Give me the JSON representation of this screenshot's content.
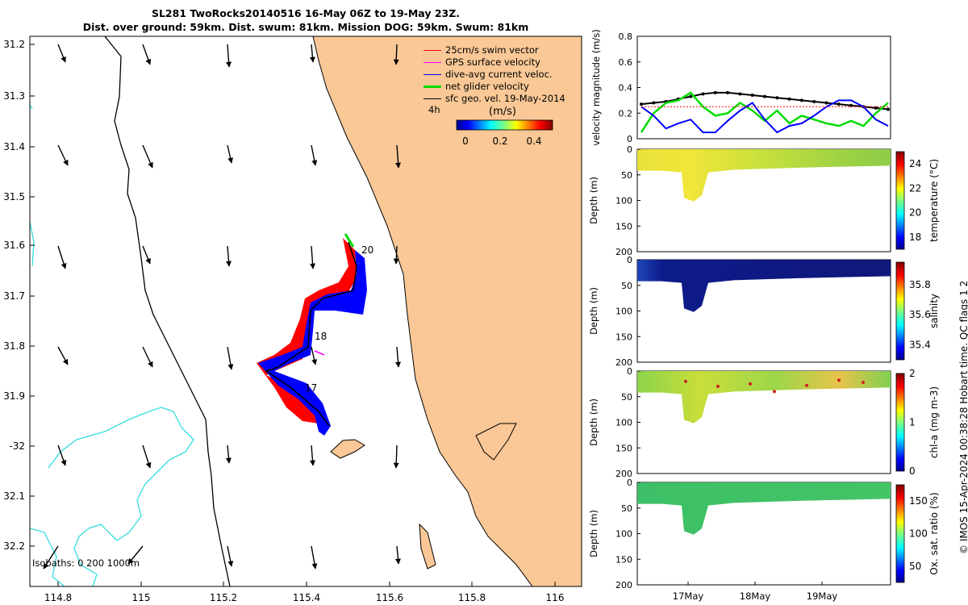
{
  "title_line1": "SL281 TwoRocks20140516 16-May 06Z to 19-May 23Z.",
  "title_line2": "Dist. over ground: 59km. Dist. swum: 81km. Mission DOG: 59km. Swum: 81km",
  "map": {
    "lon_ticks": [
      "114.8",
      "115",
      "115.2",
      "115.4",
      "115.6",
      "115.8",
      "116"
    ],
    "lat_ticks": [
      "31.2",
      "31.3",
      "31.4",
      "31.5",
      "31.6",
      "31.7",
      "31.8",
      "31.9",
      "-32",
      "32.1",
      "32.2"
    ],
    "day_labels": [
      "20",
      "18",
      "17"
    ],
    "time_label": "4h",
    "isobaths_label": "Isobaths: 0   200  1000m",
    "colors": {
      "land": "#f9c896",
      "swim": "#ff0000",
      "dive": "#0000ff",
      "gps": "#ff00ff",
      "net": "#00dd00",
      "iso200": "#000000",
      "iso1000": "#33dddd"
    }
  },
  "legend": {
    "items": [
      {
        "label": "25cm/s swim vector",
        "color": "#ff0000"
      },
      {
        "label": "GPS surface velocity",
        "color": "#ff00ff"
      },
      {
        "label": "dive-avg current veloc.",
        "color": "#0000ff"
      },
      {
        "label": "net glider velocity",
        "color": "#00dd00"
      },
      {
        "label": "sfc geo. vel. 19-May-2014",
        "color": "#000000"
      }
    ]
  },
  "colorbar": {
    "label": "(m/s)",
    "ticks": [
      "0",
      "0.2",
      "0.4"
    ],
    "range": [
      0,
      0.5
    ]
  },
  "chart_data": [
    {
      "type": "line",
      "ylabel": "velocity magnitude (m/s)",
      "ylim": [
        0,
        0.8
      ],
      "yticks": [
        "0",
        "0.2",
        "0.4",
        "0.6",
        "0.8"
      ],
      "x": [
        0,
        0.05,
        0.1,
        0.15,
        0.2,
        0.25,
        0.3,
        0.35,
        0.4,
        0.45,
        0.5,
        0.55,
        0.6,
        0.65,
        0.7,
        0.75,
        0.8,
        0.85,
        0.9,
        0.95,
        1.0
      ],
      "series": [
        {
          "name": "sfc geo. vel.",
          "color": "#000000",
          "values": [
            0.27,
            0.28,
            0.29,
            0.31,
            0.33,
            0.35,
            0.36,
            0.36,
            0.35,
            0.34,
            0.33,
            0.32,
            0.31,
            0.3,
            0.29,
            0.28,
            0.27,
            0.26,
            0.25,
            0.24,
            0.23
          ]
        },
        {
          "name": "net glider velocity",
          "color": "#00dd00",
          "values": [
            0.05,
            0.2,
            0.28,
            0.3,
            0.36,
            0.25,
            0.18,
            0.2,
            0.28,
            0.22,
            0.14,
            0.22,
            0.12,
            0.18,
            0.15,
            0.12,
            0.1,
            0.14,
            0.1,
            0.2,
            0.28
          ]
        },
        {
          "name": "dive-avg current veloc.",
          "color": "#0000ff",
          "values": [
            0.25,
            0.18,
            0.08,
            0.12,
            0.15,
            0.05,
            0.05,
            0.14,
            0.22,
            0.28,
            0.15,
            0.05,
            0.1,
            0.12,
            0.18,
            0.25,
            0.3,
            0.3,
            0.25,
            0.15,
            0.1
          ]
        },
        {
          "name": "swim vector",
          "color": "#ff0000",
          "values": [
            0.25,
            0.25,
            0.25,
            0.25,
            0.25,
            0.25,
            0.25,
            0.25,
            0.25,
            0.25,
            0.25,
            0.25,
            0.25,
            0.25,
            0.25,
            0.25,
            0.25,
            0.25,
            0.25,
            0.25,
            0.25
          ]
        }
      ]
    },
    {
      "type": "heatmap",
      "ylabel": "Depth (m)",
      "clabel": "temperature (°C)",
      "yticks": [
        "0",
        "50",
        "100",
        "150",
        "200"
      ],
      "cticks": [
        "18",
        "20",
        "22",
        "24"
      ],
      "crange": [
        17,
        25
      ]
    },
    {
      "type": "heatmap",
      "ylabel": "Depth (m)",
      "clabel": "salinity",
      "yticks": [
        "0",
        "50",
        "100",
        "150",
        "200"
      ],
      "cticks": [
        "35.4",
        "35.6",
        "35.8"
      ],
      "crange": [
        35.3,
        35.95
      ]
    },
    {
      "type": "heatmap",
      "ylabel": "Depth (m)",
      "clabel": "chl-a (mg m-3)",
      "yticks": [
        "0",
        "50",
        "100",
        "150",
        "200"
      ],
      "cticks": [
        "0",
        "1",
        "2"
      ],
      "crange": [
        0,
        2
      ]
    },
    {
      "type": "heatmap",
      "ylabel": "Depth (m)",
      "clabel": "Ox. sat. ratio (%)",
      "yticks": [
        "0",
        "50",
        "100",
        "150",
        "200"
      ],
      "cticks": [
        "50",
        "100",
        "150"
      ],
      "crange": [
        25,
        175
      ],
      "xticks": [
        "17May",
        "18May",
        "19May"
      ]
    }
  ],
  "copyright": "© IMOS 15-Apr-2024 00:38:28 Hobart time. QC flags 1  2"
}
